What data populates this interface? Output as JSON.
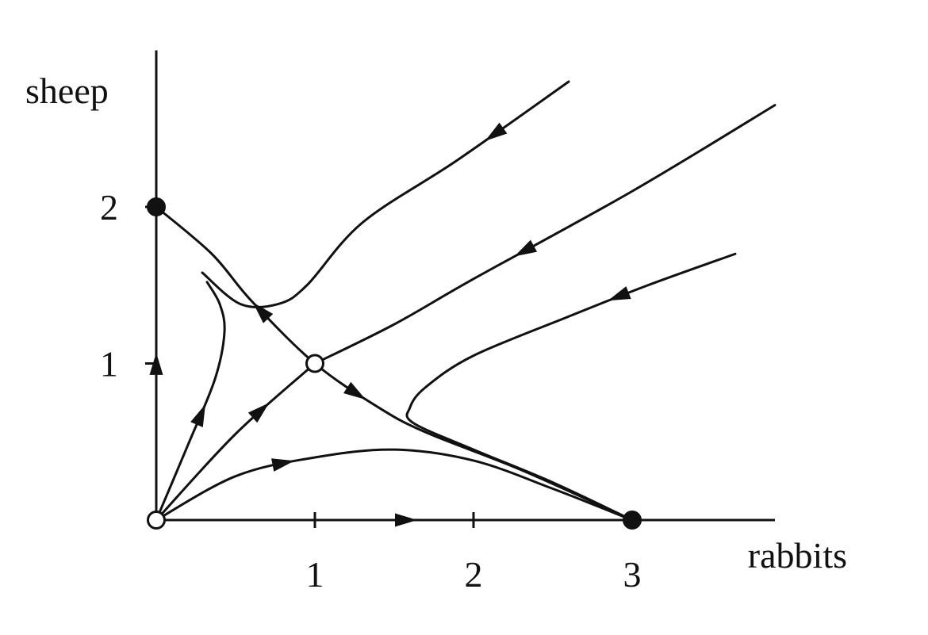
{
  "chart_data": {
    "type": "phase-portrait",
    "xlabel": "rabbits",
    "ylabel": "sheep",
    "x_ticks": [
      "1",
      "2",
      "3"
    ],
    "y_ticks": [
      "1",
      "2"
    ],
    "xlim": [
      0,
      3.9
    ],
    "ylim": [
      0,
      3.0
    ],
    "colors": {
      "ink": "#111111",
      "open_point_fill": "#ffffff"
    },
    "fixed_points": [
      {
        "x": 0,
        "y": 0,
        "stability": "unstable"
      },
      {
        "x": 0,
        "y": 2,
        "stability": "stable"
      },
      {
        "x": 3,
        "y": 0,
        "stability": "stable"
      },
      {
        "x": 1,
        "y": 1,
        "stability": "saddle"
      }
    ],
    "trajectories": [
      {
        "points": [
          [
            2.6,
            2.8
          ],
          [
            1.9,
            2.3
          ],
          [
            1.3,
            1.9
          ],
          [
            0.95,
            1.5
          ],
          [
            0.77,
            1.38
          ],
          [
            0.53,
            1.38
          ],
          [
            0.29,
            1.58
          ]
        ],
        "arrows": [
          {
            "at": 0.2,
            "dir": "forward"
          }
        ]
      },
      {
        "points": [
          [
            3.9,
            2.65
          ],
          [
            3.0,
            2.1
          ],
          [
            2.0,
            1.54
          ],
          [
            1.5,
            1.25
          ],
          [
            1.0,
            1.0
          ]
        ],
        "arrows": [
          {
            "at": 0.55,
            "dir": "forward"
          }
        ]
      },
      {
        "points": [
          [
            3.65,
            1.7
          ],
          [
            3.1,
            1.5
          ],
          [
            2.6,
            1.3
          ],
          [
            2.0,
            1.05
          ],
          [
            1.7,
            0.85
          ],
          [
            1.6,
            0.72
          ],
          [
            1.62,
            0.62
          ],
          [
            2.0,
            0.45
          ],
          [
            2.5,
            0.24
          ],
          [
            3.0,
            0.0
          ]
        ],
        "arrows": [
          {
            "at": 0.2,
            "dir": "forward"
          }
        ]
      },
      {
        "points": [
          [
            0,
            2
          ],
          [
            0.35,
            1.7
          ],
          [
            0.6,
            1.4
          ],
          [
            1.0,
            1.0
          ],
          [
            1.4,
            0.72
          ],
          [
            1.7,
            0.56
          ],
          [
            2.3,
            0.32
          ],
          [
            3.0,
            0.0
          ]
        ],
        "arrows": [
          {
            "at": 0.255,
            "dir": "backward"
          },
          {
            "at": 0.475,
            "dir": "forward"
          }
        ]
      },
      {
        "points": [
          [
            0,
            0
          ],
          [
            0.2,
            0.48
          ],
          [
            0.37,
            0.9
          ],
          [
            0.43,
            1.2
          ],
          [
            0.4,
            1.38
          ],
          [
            0.32,
            1.52
          ]
        ],
        "arrows": [
          {
            "at": 0.45,
            "dir": "forward"
          }
        ]
      },
      {
        "points": [
          [
            0,
            0
          ],
          [
            0.5,
            0.55
          ],
          [
            1.0,
            1.0
          ]
        ],
        "arrows": [
          {
            "at": 0.68,
            "dir": "forward"
          }
        ]
      },
      {
        "points": [
          [
            0,
            0
          ],
          [
            0.5,
            0.28
          ],
          [
            1.0,
            0.4
          ],
          [
            1.5,
            0.45
          ],
          [
            2.0,
            0.38
          ],
          [
            2.5,
            0.2
          ],
          [
            3.0,
            0.0
          ]
        ],
        "arrows": [
          {
            "at": 0.28,
            "dir": "forward"
          }
        ]
      },
      {
        "points": [
          [
            0,
            0
          ],
          [
            0,
            1.28
          ]
        ],
        "arrows": [
          {
            "at": 0.78,
            "dir": "forward"
          }
        ]
      },
      {
        "points": [
          [
            0,
            0
          ],
          [
            1.75,
            0
          ]
        ],
        "arrows": [
          {
            "at": 0.9,
            "dir": "forward"
          }
        ]
      }
    ]
  }
}
